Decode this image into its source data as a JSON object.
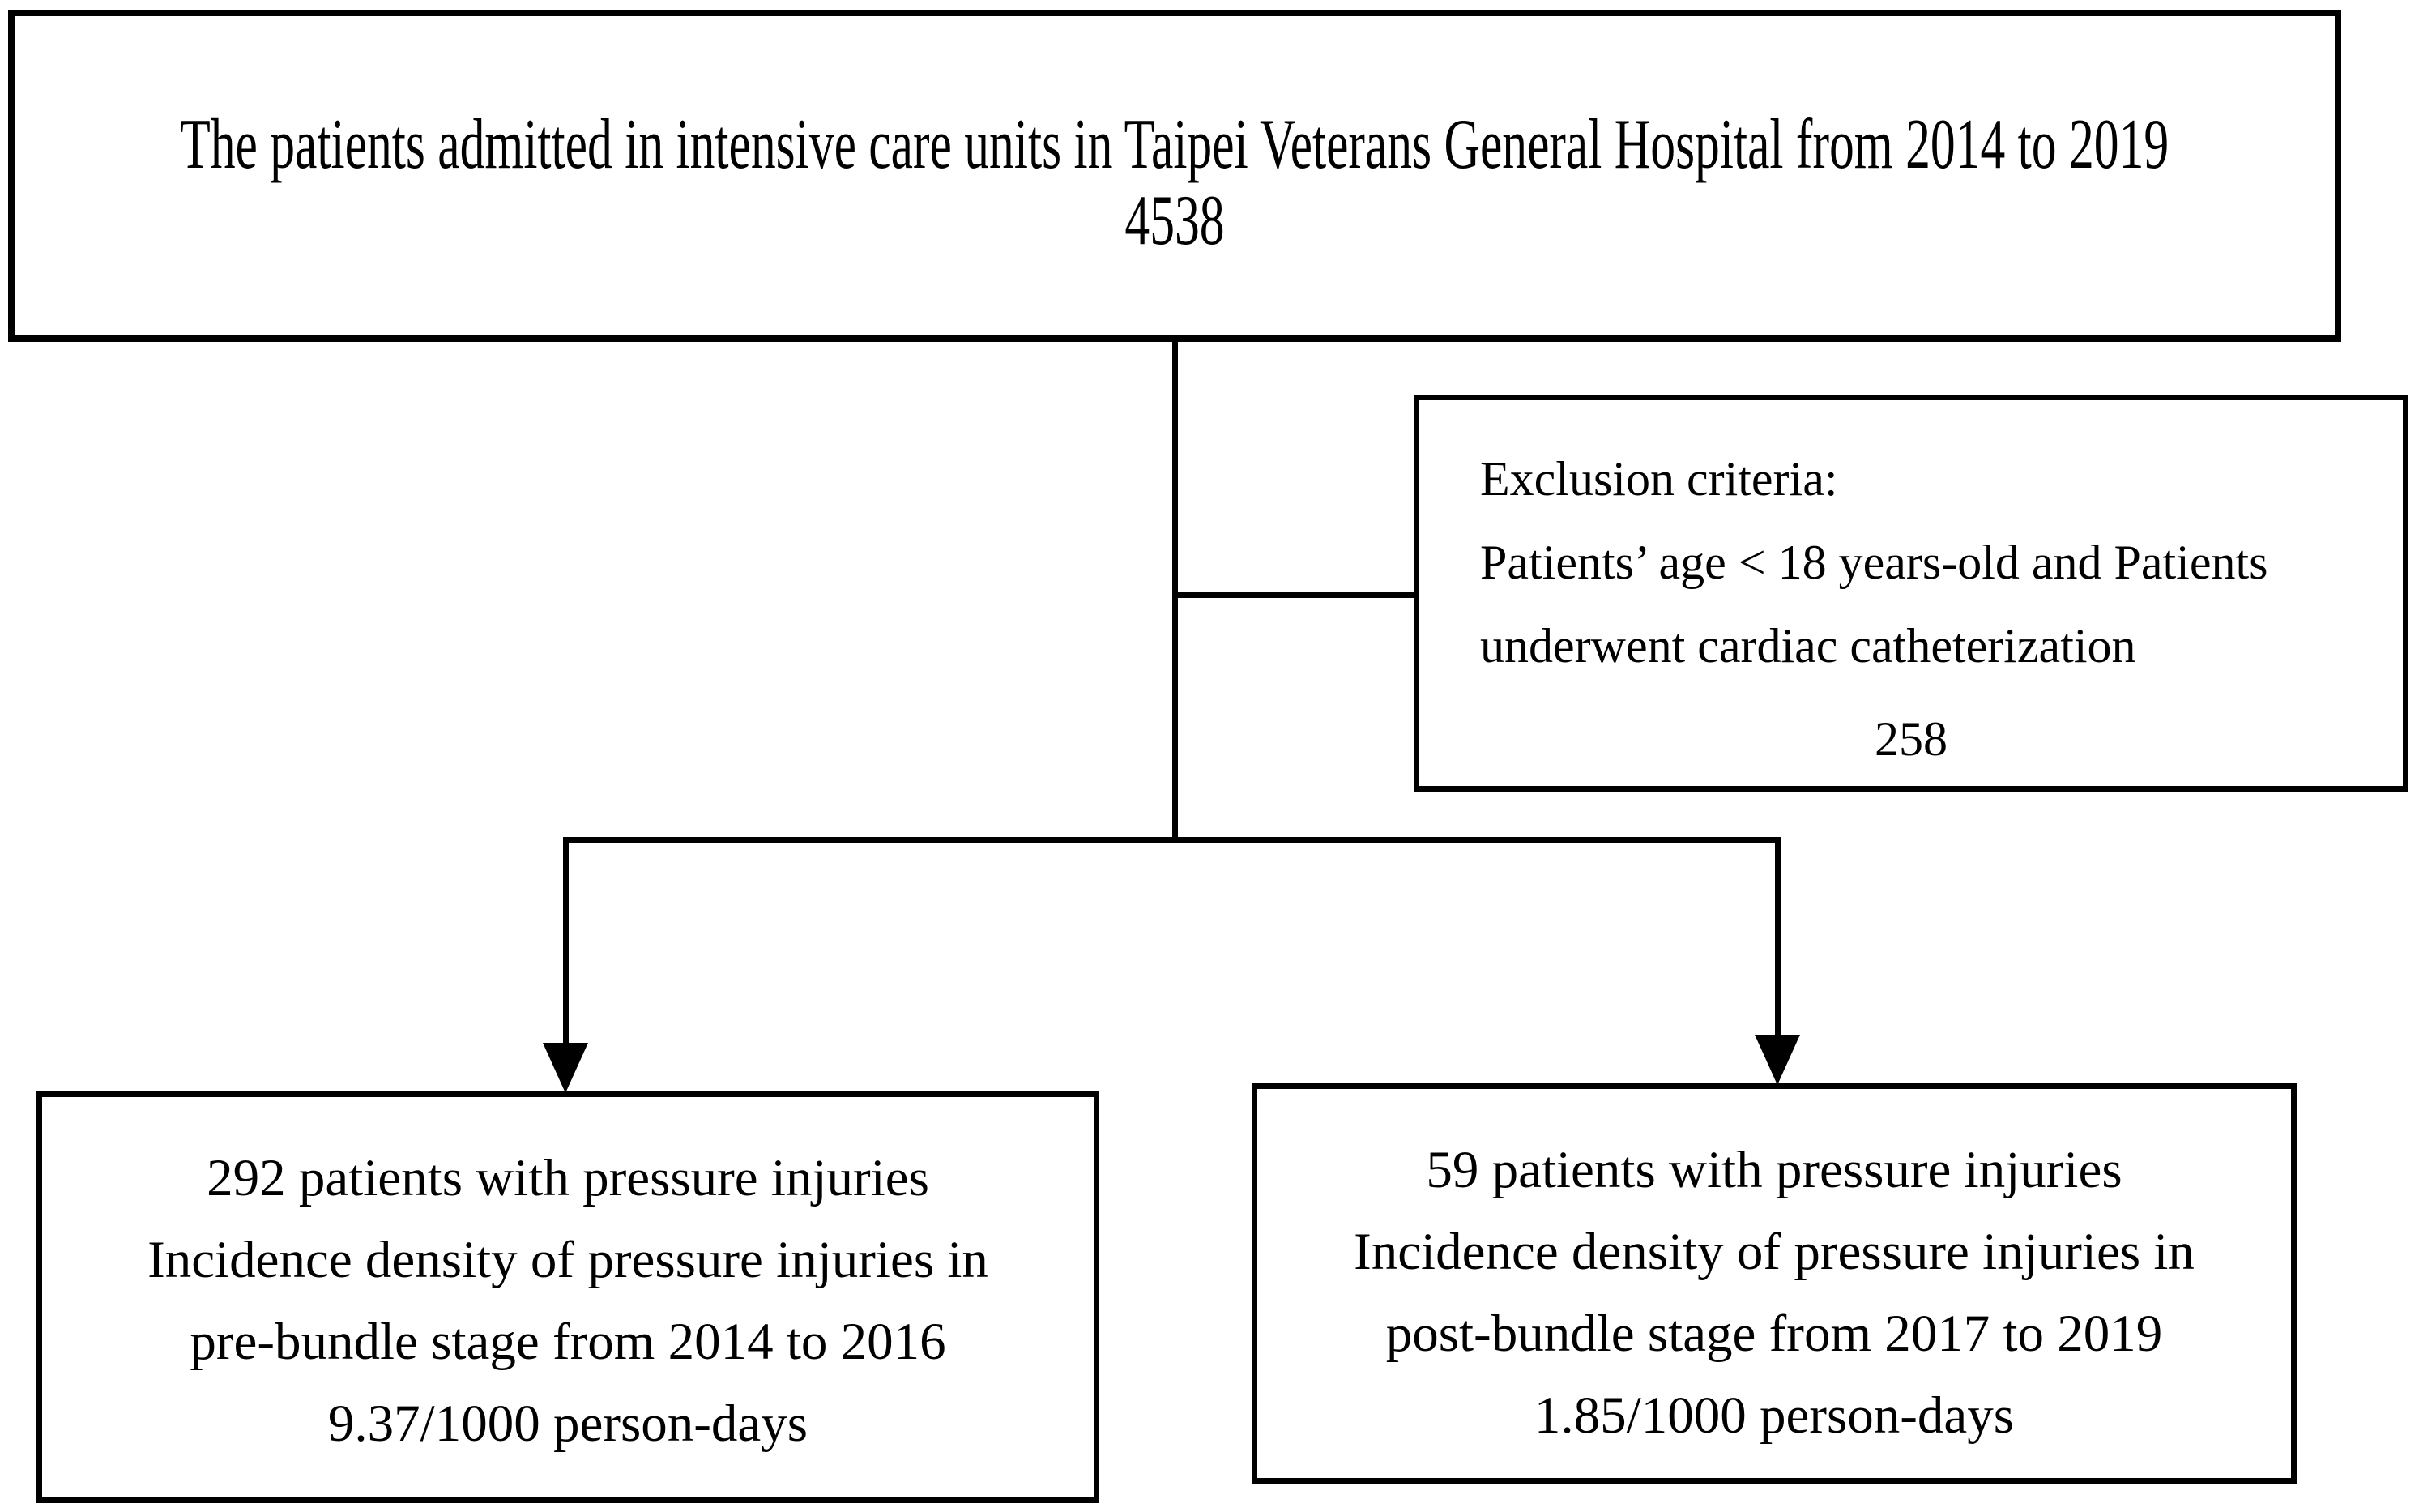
{
  "figure": {
    "type": "patient-flow-diagram",
    "background_color": "#ffffff",
    "line_color": "#000000",
    "text_color": "#000000"
  },
  "boxes": {
    "admitted": {
      "line1": "The patients admitted in intensive care units in Taipei Veterans General Hospital from 2014 to 2019",
      "count": "4538"
    },
    "exclusion": {
      "title": "Exclusion criteria:",
      "line1": "Patients’ age < 18 years-old and Patients",
      "line2": "underwent cardiac catheterization",
      "count": "258"
    },
    "pre_bundle": {
      "line1": "292 patients with pressure injuries",
      "line2": "Incidence density of pressure injuries in",
      "line3": "pre-bundle stage from 2014 to 2016",
      "line4": "9.37/1000 person-days"
    },
    "post_bundle": {
      "line1": "59 patients with pressure injuries",
      "line2": "Incidence density of pressure injuries in",
      "line3": "post-bundle stage from 2017 to 2019",
      "line4": "1.85/1000 person-days"
    }
  }
}
